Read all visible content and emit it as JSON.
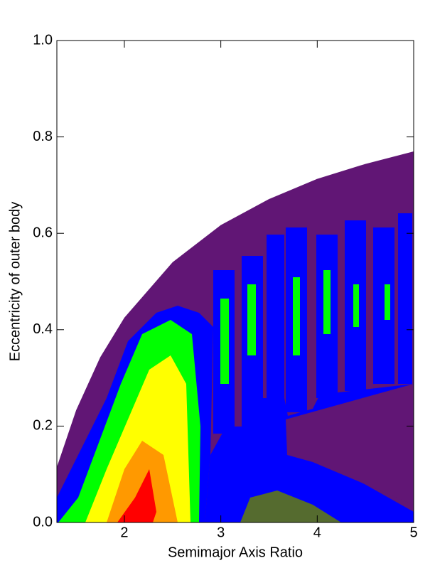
{
  "chart_data": {
    "type": "contour",
    "xlabel": "Semimajor Axis Ratio",
    "ylabel": "Eccentricity of outer body",
    "xlim": [
      1.3,
      5
    ],
    "ylim": [
      0,
      1
    ],
    "xticks": [
      2,
      3,
      4,
      5
    ],
    "yticks": [
      {
        "value": 0,
        "label": "0.0"
      },
      {
        "value": 0.2,
        "label": "0.2"
      },
      {
        "value": 0.4,
        "label": "0.4"
      },
      {
        "value": 0.6,
        "label": "0.6"
      },
      {
        "value": 0.8,
        "label": "0.8"
      },
      {
        "value": 1,
        "label": "1.0"
      }
    ],
    "boundary": {
      "color": "#611675",
      "x": [
        1.3,
        1.5,
        1.75,
        2,
        2.5,
        3,
        3.5,
        4,
        4.5,
        5
      ],
      "y": [
        0.115,
        0.233,
        0.343,
        0.425,
        0.54,
        0.617,
        0.671,
        0.713,
        0.744,
        0.77
      ]
    }
  }
}
